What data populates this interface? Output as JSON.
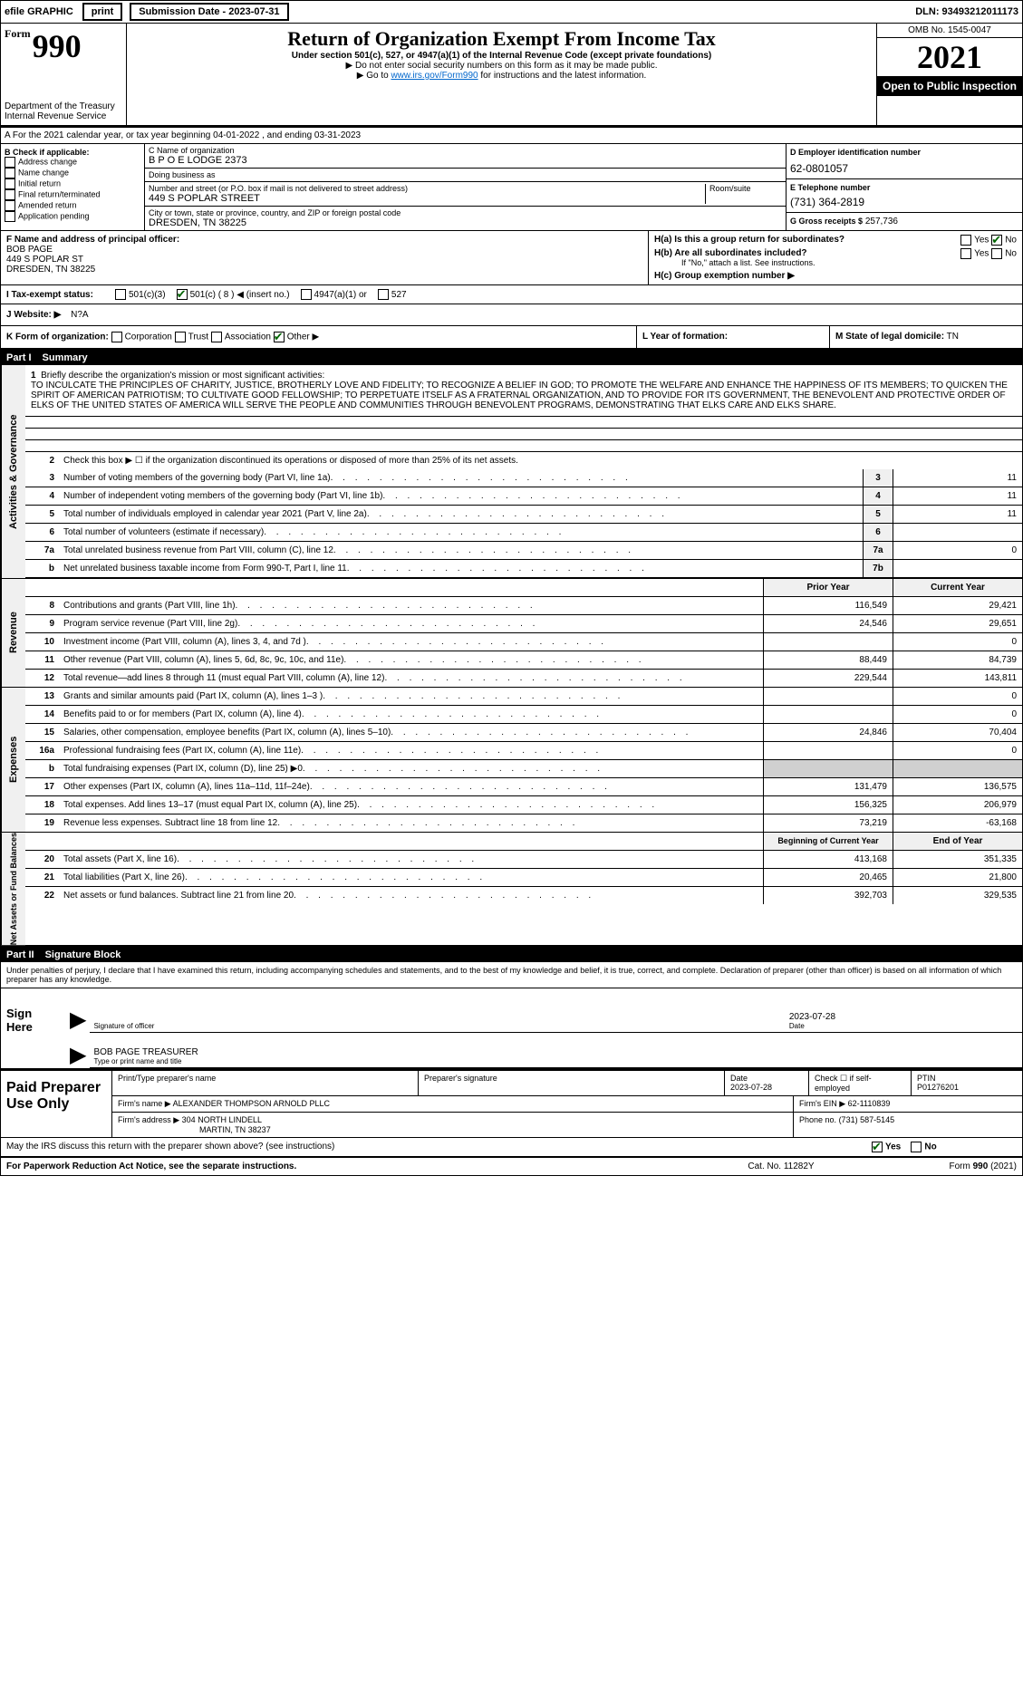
{
  "topbar": {
    "efile_label": "efile GRAPHIC",
    "print_btn": "print",
    "submission_label": "Submission Date - 2023-07-31",
    "dln": "DLN: 93493212011173"
  },
  "header": {
    "form_word": "Form",
    "form_number": "990",
    "dept": "Department of the Treasury",
    "irs": "Internal Revenue Service",
    "title": "Return of Organization Exempt From Income Tax",
    "subtitle": "Under section 501(c), 527, or 4947(a)(1) of the Internal Revenue Code (except private foundations)",
    "warn1": "▶ Do not enter social security numbers on this form as it may be made public.",
    "warn2_pre": "▶ Go to ",
    "warn2_link": "www.irs.gov/Form990",
    "warn2_post": " for instructions and the latest information.",
    "omb": "OMB No. 1545-0047",
    "year": "2021",
    "open_public": "Open to Public Inspection"
  },
  "period": {
    "line_a": "A For the 2021 calendar year, or tax year beginning 04-01-2022",
    "line_a_end": ", and ending 03-31-2023"
  },
  "boxB": {
    "header": "B Check if applicable:",
    "items": [
      "Address change",
      "Name change",
      "Initial return",
      "Final return/terminated",
      "Amended return",
      "Application pending"
    ]
  },
  "boxC": {
    "name_label": "C Name of organization",
    "name": "B P O E LODGE 2373",
    "dba_label": "Doing business as",
    "dba": "",
    "street_label": "Number and street (or P.O. box if mail is not delivered to street address)",
    "street": "449 S POPLAR STREET",
    "room_label": "Room/suite",
    "city_label": "City or town, state or province, country, and ZIP or foreign postal code",
    "city": "DRESDEN, TN  38225"
  },
  "boxD": {
    "label": "D Employer identification number",
    "value": "62-0801057"
  },
  "boxE": {
    "label": "E Telephone number",
    "value": "(731) 364-2819"
  },
  "boxG": {
    "label": "G Gross receipts $",
    "value": "257,736"
  },
  "boxF": {
    "label": "F  Name and address of principal officer:",
    "name": "BOB PAGE",
    "addr1": "449 S POPLAR ST",
    "addr2": "DRESDEN, TN  38225"
  },
  "boxH": {
    "h_a": "H(a)  Is this a group return for subordinates?",
    "h_b": "H(b)  Are all subordinates included?",
    "h_b_note": "If \"No,\" attach a list. See instructions.",
    "h_c": "H(c)  Group exemption number ▶",
    "yes": "Yes",
    "no": "No"
  },
  "boxI": {
    "label": "I  Tax-exempt status:",
    "opts": [
      "501(c)(3)",
      "501(c) ( 8 ) ◀ (insert no.)",
      "4947(a)(1) or",
      "527"
    ]
  },
  "boxJ": {
    "label": "J  Website: ▶",
    "value": "N?A"
  },
  "boxK": {
    "label": "K Form of organization:",
    "opts": [
      "Corporation",
      "Trust",
      "Association",
      "Other ▶"
    ]
  },
  "boxL": {
    "label": "L Year of formation:"
  },
  "boxM": {
    "label": "M State of legal domicile:",
    "value": "TN"
  },
  "part1": {
    "header_part": "Part I",
    "header_title": "Summary",
    "line1_label": "1",
    "line1_desc": "Briefly describe the organization's mission or most significant activities:",
    "mission": "TO INCULCATE THE PRINCIPLES OF CHARITY, JUSTICE, BROTHERLY LOVE AND FIDELITY; TO RECOGNIZE A BELIEF IN GOD; TO PROMOTE THE WELFARE AND ENHANCE THE HAPPINESS OF ITS MEMBERS; TO QUICKEN THE SPIRIT OF AMERICAN PATRIOTISM; TO CULTIVATE GOOD FELLOWSHIP; TO PERPETUATE ITSELF AS A FRATERNAL ORGANIZATION, AND TO PROVIDE FOR ITS GOVERNMENT, THE BENEVOLENT AND PROTECTIVE ORDER OF ELKS OF THE UNITED STATES OF AMERICA WILL SERVE THE PEOPLE AND COMMUNITIES THROUGH BENEVOLENT PROGRAMS, DEMONSTRATING THAT ELKS CARE AND ELKS SHARE.",
    "line2": "Check this box ▶ ☐ if the organization discontinued its operations or disposed of more than 25% of its net assets.",
    "governance_sidebar": "Activities & Governance",
    "revenue_sidebar": "Revenue",
    "expenses_sidebar": "Expenses",
    "netassets_sidebar": "Net Assets or Fund Balances",
    "lines_gov": [
      {
        "n": "3",
        "d": "Number of voting members of the governing body (Part VI, line 1a)",
        "box": "3",
        "v": "11"
      },
      {
        "n": "4",
        "d": "Number of independent voting members of the governing body (Part VI, line 1b)",
        "box": "4",
        "v": "11"
      },
      {
        "n": "5",
        "d": "Total number of individuals employed in calendar year 2021 (Part V, line 2a)",
        "box": "5",
        "v": "11"
      },
      {
        "n": "6",
        "d": "Total number of volunteers (estimate if necessary)",
        "box": "6",
        "v": ""
      },
      {
        "n": "7a",
        "d": "Total unrelated business revenue from Part VIII, column (C), line 12",
        "box": "7a",
        "v": "0"
      },
      {
        "n": "b",
        "d": "Net unrelated business taxable income from Form 990-T, Part I, line 11",
        "box": "7b",
        "v": ""
      }
    ],
    "col_prior": "Prior Year",
    "col_curr": "Current Year",
    "lines_rev": [
      {
        "n": "8",
        "d": "Contributions and grants (Part VIII, line 1h)",
        "p": "116,549",
        "c": "29,421"
      },
      {
        "n": "9",
        "d": "Program service revenue (Part VIII, line 2g)",
        "p": "24,546",
        "c": "29,651"
      },
      {
        "n": "10",
        "d": "Investment income (Part VIII, column (A), lines 3, 4, and 7d )",
        "p": "",
        "c": "0"
      },
      {
        "n": "11",
        "d": "Other revenue (Part VIII, column (A), lines 5, 6d, 8c, 9c, 10c, and 11e)",
        "p": "88,449",
        "c": "84,739"
      },
      {
        "n": "12",
        "d": "Total revenue—add lines 8 through 11 (must equal Part VIII, column (A), line 12)",
        "p": "229,544",
        "c": "143,811"
      }
    ],
    "lines_exp": [
      {
        "n": "13",
        "d": "Grants and similar amounts paid (Part IX, column (A), lines 1–3 )",
        "p": "",
        "c": "0"
      },
      {
        "n": "14",
        "d": "Benefits paid to or for members (Part IX, column (A), line 4)",
        "p": "",
        "c": "0"
      },
      {
        "n": "15",
        "d": "Salaries, other compensation, employee benefits (Part IX, column (A), lines 5–10)",
        "p": "24,846",
        "c": "70,404"
      },
      {
        "n": "16a",
        "d": "Professional fundraising fees (Part IX, column (A), line 11e)",
        "p": "",
        "c": "0"
      },
      {
        "n": "b",
        "d": "Total fundraising expenses (Part IX, column (D), line 25) ▶0",
        "p": "_shade",
        "c": "_shade"
      },
      {
        "n": "17",
        "d": "Other expenses (Part IX, column (A), lines 11a–11d, 11f–24e)",
        "p": "131,479",
        "c": "136,575"
      },
      {
        "n": "18",
        "d": "Total expenses. Add lines 13–17 (must equal Part IX, column (A), line 25)",
        "p": "156,325",
        "c": "206,979"
      },
      {
        "n": "19",
        "d": "Revenue less expenses. Subtract line 18 from line 12",
        "p": "73,219",
        "c": "-63,168"
      }
    ],
    "col_begin": "Beginning of Current Year",
    "col_end": "End of Year",
    "lines_na": [
      {
        "n": "20",
        "d": "Total assets (Part X, line 16)",
        "p": "413,168",
        "c": "351,335"
      },
      {
        "n": "21",
        "d": "Total liabilities (Part X, line 26)",
        "p": "20,465",
        "c": "21,800"
      },
      {
        "n": "22",
        "d": "Net assets or fund balances. Subtract line 21 from line 20",
        "p": "392,703",
        "c": "329,535"
      }
    ]
  },
  "part2": {
    "header_part": "Part II",
    "header_title": "Signature Block",
    "declaration": "Under penalties of perjury, I declare that I have examined this return, including accompanying schedules and statements, and to the best of my knowledge and belief, it is true, correct, and complete. Declaration of preparer (other than officer) is based on all information of which preparer has any knowledge.",
    "sign_here": "Sign Here",
    "sig_officer_label": "Signature of officer",
    "sig_date": "2023-07-28",
    "sig_date_label": "Date",
    "officer_name": "BOB PAGE TREASURER",
    "officer_name_label": "Type or print name and title",
    "paid_label": "Paid Preparer Use Only",
    "prep_name_label": "Print/Type preparer's name",
    "prep_sig_label": "Preparer's signature",
    "prep_date_label": "Date",
    "prep_date": "2023-07-28",
    "self_emp": "Check ☐ if self-employed",
    "ptin_label": "PTIN",
    "ptin": "P01276201",
    "firm_name_label": "Firm's name    ▶",
    "firm_name": "ALEXANDER THOMPSON ARNOLD PLLC",
    "firm_ein_label": "Firm's EIN ▶",
    "firm_ein": "62-1110839",
    "firm_addr_label": "Firm's address ▶",
    "firm_addr": "304 NORTH LINDELL",
    "firm_addr2": "MARTIN, TN  38237",
    "phone_label": "Phone no.",
    "phone": "(731) 587-5145"
  },
  "footer": {
    "discuss": "May the IRS discuss this return with the preparer shown above? (see instructions)",
    "yes": "Yes",
    "no": "No",
    "paperwork": "For Paperwork Reduction Act Notice, see the separate instructions.",
    "catno": "Cat. No. 11282Y",
    "formrev": "Form 990 (2021)"
  }
}
